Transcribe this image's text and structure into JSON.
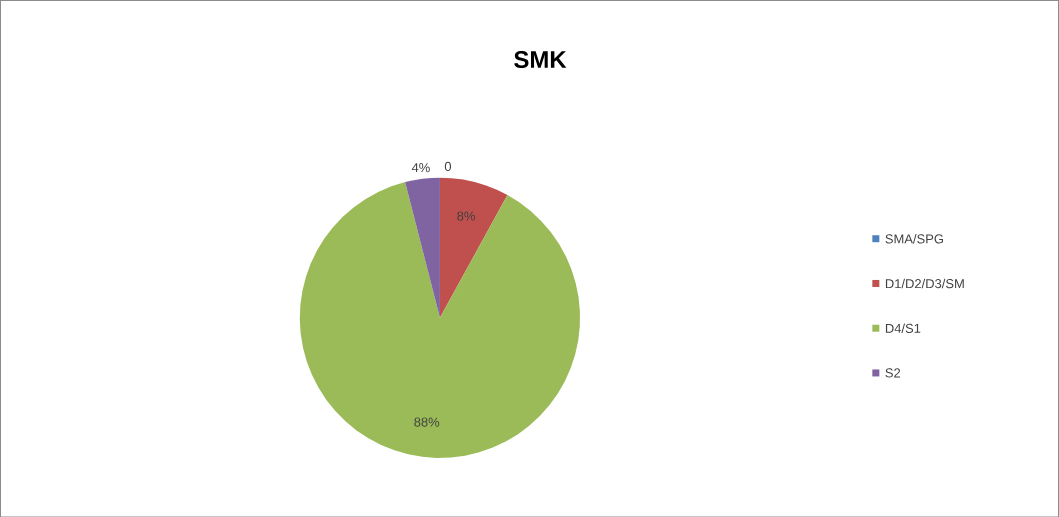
{
  "chart_data": {
    "type": "pie",
    "title": "SMK",
    "categories": [
      "SMA/SPG",
      "D1/D2/D3/SM",
      "D4/S1",
      "S2"
    ],
    "values": [
      0,
      8,
      88,
      4
    ],
    "colors": [
      "#4f81bd",
      "#c0504d",
      "#9bbb59",
      "#8064a2"
    ],
    "value_labels": [
      "0",
      "8%",
      "88%",
      "4%"
    ],
    "legend": "right"
  }
}
